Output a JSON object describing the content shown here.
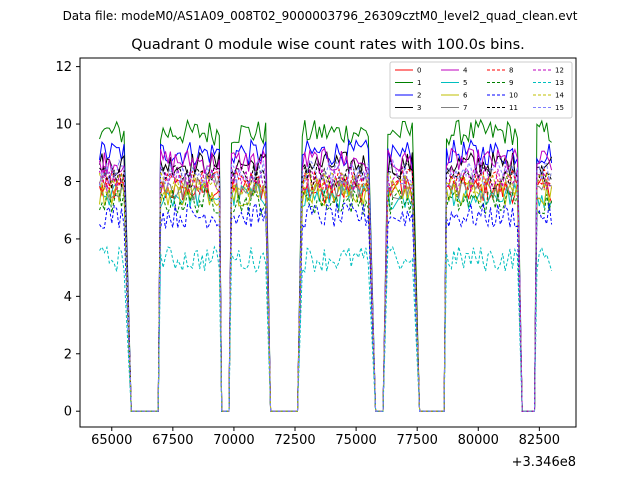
{
  "header": {
    "file_caption": "Data file: modeM0/AS1A09_008T02_9000003796_26309cztM0_level2_quad_clean.evt"
  },
  "chart_data": {
    "type": "line",
    "title": "Quadrant 0 module wise count rates with 100.0s bins.",
    "xlabel": "",
    "ylabel": "",
    "x_offset_label": "+3.346e8",
    "xlim": [
      63700,
      84000
    ],
    "ylim": [
      -0.55,
      12.3
    ],
    "xticks": [
      65000,
      67500,
      70000,
      72500,
      75000,
      77500,
      80000,
      82500
    ],
    "yticks": [
      0,
      2,
      4,
      6,
      8,
      10,
      12
    ],
    "xtick_labels": [
      "65000",
      "67500",
      "70000",
      "72500",
      "75000",
      "77500",
      "80000",
      "82500"
    ],
    "ytick_labels": [
      "0",
      "2",
      "4",
      "6",
      "8",
      "10",
      "12"
    ],
    "grid": false,
    "legend_position": "top-right",
    "legend_columns": 4,
    "on_segments": [
      [
        64500,
        65500
      ],
      [
        67000,
        69400
      ],
      [
        69900,
        70300
      ],
      [
        70500,
        71300
      ],
      [
        72800,
        75500
      ],
      [
        76300,
        76500
      ],
      [
        76800,
        77300
      ],
      [
        78700,
        81600
      ],
      [
        82400,
        83000
      ]
    ],
    "off_segments": [
      [
        65800,
        66900
      ],
      [
        69500,
        69800
      ],
      [
        71500,
        72600
      ],
      [
        75800,
        76100
      ],
      [
        77600,
        78600
      ],
      [
        81800,
        82300
      ]
    ],
    "series": [
      {
        "name": "0",
        "color": "#ff0000",
        "dashed": false,
        "level": 7.7
      },
      {
        "name": "1",
        "color": "#008000",
        "dashed": false,
        "level": 9.7
      },
      {
        "name": "2",
        "color": "#0000ff",
        "dashed": false,
        "level": 9.0
      },
      {
        "name": "3",
        "color": "#000000",
        "dashed": false,
        "level": 8.6
      },
      {
        "name": "4",
        "color": "#bf00bf",
        "dashed": false,
        "level": 8.7
      },
      {
        "name": "5",
        "color": "#00bfbf",
        "dashed": false,
        "level": 7.5
      },
      {
        "name": "6",
        "color": "#bfbf00",
        "dashed": false,
        "level": 7.6
      },
      {
        "name": "7",
        "color": "#808080",
        "dashed": false,
        "level": 7.8
      },
      {
        "name": "8",
        "color": "#ff0000",
        "dashed": true,
        "level": 8.0
      },
      {
        "name": "9",
        "color": "#008000",
        "dashed": true,
        "level": 7.3
      },
      {
        "name": "10",
        "color": "#0000ff",
        "dashed": true,
        "level": 6.8
      },
      {
        "name": "11",
        "color": "#000000",
        "dashed": true,
        "level": 8.2
      },
      {
        "name": "12",
        "color": "#bf00bf",
        "dashed": true,
        "level": 8.1
      },
      {
        "name": "13",
        "color": "#00bfbf",
        "dashed": true,
        "level": 5.3
      },
      {
        "name": "14",
        "color": "#bfbf00",
        "dashed": true,
        "level": 7.9
      },
      {
        "name": "15",
        "color": "#8080ff",
        "dashed": true,
        "level": 8.3
      }
    ]
  }
}
